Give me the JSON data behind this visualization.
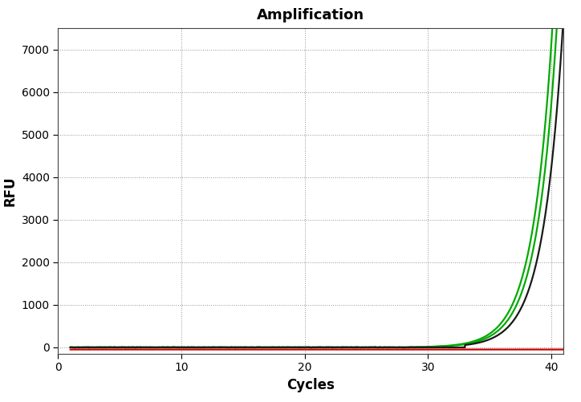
{
  "title": "Amplification",
  "xlabel": "Cycles",
  "ylabel": "RFU",
  "xlim": [
    0,
    41
  ],
  "ylim": [
    -150,
    7500
  ],
  "yticks": [
    0,
    1000,
    2000,
    3000,
    4000,
    5000,
    6000,
    7000
  ],
  "xticks": [
    0,
    10,
    20,
    30,
    40
  ],
  "line_colors": {
    "green": "#00AA00",
    "black": "#1A1A1A",
    "red": "#CC0000"
  },
  "background_color": "#FFFFFF",
  "grid_color": "#888888",
  "title_fontsize": 13,
  "axis_label_fontsize": 12,
  "tick_fontsize": 10,
  "line_width": 1.6,
  "green1_start": 28.5,
  "green1_rate": 0.62,
  "green1_scale": 4e-05,
  "green2_start": 30.5,
  "green2_rate": 0.62,
  "green2_scale": 4e-05,
  "black_start": 33.0,
  "black_rate": 0.62,
  "black_scale": 4e-05,
  "red_value": -50
}
